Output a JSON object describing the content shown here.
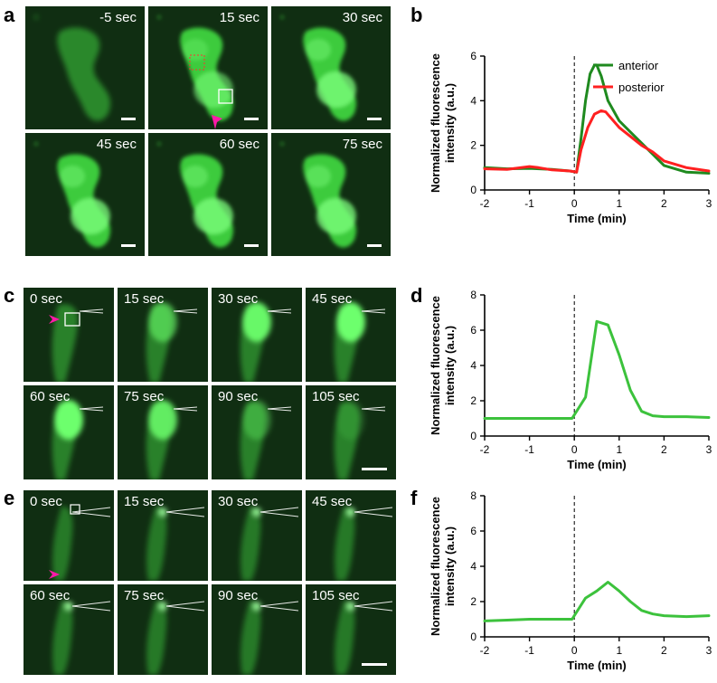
{
  "panels": {
    "a": {
      "label": "a",
      "frames": [
        "-5 sec",
        "15 sec",
        "30 sec",
        "45 sec",
        "60 sec",
        "75 sec"
      ]
    },
    "b": {
      "label": "b"
    },
    "c": {
      "label": "c",
      "frames": [
        "0 sec",
        "15 sec",
        "30 sec",
        "45 sec",
        "60 sec",
        "75 sec",
        "90 sec",
        "105 sec"
      ]
    },
    "d": {
      "label": "d"
    },
    "e": {
      "label": "e",
      "frames": [
        "0 sec",
        "15 sec",
        "30 sec",
        "45 sec",
        "60 sec",
        "75 sec",
        "90 sec",
        "105 sec"
      ]
    },
    "f": {
      "label": "f"
    }
  },
  "colors": {
    "cell_green": "#3fd43f",
    "background": "#0b1f0d",
    "arrowhead": "#ff1aa8",
    "anterior": "#1f8a1f",
    "posterior": "#ff2020",
    "single": "#3cc23c"
  },
  "chart_data": [
    {
      "id": "b",
      "type": "line",
      "xlabel": "Time (min)",
      "ylabel": "Normalized fluorescence intensity (a.u.)",
      "xlim": [
        -2,
        3
      ],
      "ylim": [
        0,
        6
      ],
      "xticks": [
        "-2",
        "-1",
        "0",
        "1",
        "2",
        "3"
      ],
      "yticks": [
        "0",
        "2",
        "4",
        "6"
      ],
      "legend": "top-right",
      "vline_x": 0,
      "series": [
        {
          "name": "anterior",
          "color": "#1f8a1f",
          "x": [
            -2,
            -1.5,
            -1,
            -0.5,
            -0.1,
            0.05,
            0.15,
            0.25,
            0.35,
            0.45,
            0.5,
            0.6,
            0.75,
            1.0,
            1.25,
            1.5,
            1.75,
            2.0,
            2.5,
            3.0
          ],
          "y": [
            1.0,
            0.95,
            0.97,
            0.92,
            0.85,
            0.8,
            2.3,
            4.0,
            5.2,
            5.6,
            5.6,
            5.1,
            4.0,
            3.1,
            2.6,
            2.1,
            1.6,
            1.1,
            0.8,
            0.75
          ]
        },
        {
          "name": "posterior",
          "color": "#ff2020",
          "x": [
            -2,
            -1.5,
            -1,
            -0.8,
            -0.5,
            -0.1,
            0.05,
            0.15,
            0.3,
            0.45,
            0.6,
            0.7,
            1.0,
            1.25,
            1.5,
            1.75,
            2.0,
            2.5,
            3.0
          ],
          "y": [
            0.95,
            0.92,
            1.05,
            1.0,
            0.9,
            0.85,
            0.8,
            1.8,
            2.8,
            3.4,
            3.55,
            3.5,
            2.8,
            2.4,
            2.0,
            1.7,
            1.3,
            1.0,
            0.85
          ]
        }
      ]
    },
    {
      "id": "d",
      "type": "line",
      "xlabel": "Time (min)",
      "ylabel": "Normalized fluorescence intensity (a.u.)",
      "xlim": [
        -2,
        3
      ],
      "ylim": [
        0,
        8
      ],
      "xticks": [
        "-2",
        "-1",
        "0",
        "1",
        "2",
        "3"
      ],
      "yticks": [
        "0",
        "2",
        "4",
        "6",
        "8"
      ],
      "vline_x": 0,
      "series": [
        {
          "color": "#3cc23c",
          "x": [
            -2,
            -1.5,
            -1,
            -0.5,
            -0.05,
            0.25,
            0.5,
            0.75,
            1.0,
            1.25,
            1.5,
            1.75,
            2.0,
            2.5,
            3.0
          ],
          "y": [
            1.0,
            1.0,
            1.0,
            1.0,
            1.0,
            2.2,
            6.5,
            6.3,
            4.6,
            2.6,
            1.4,
            1.15,
            1.1,
            1.1,
            1.05
          ]
        }
      ]
    },
    {
      "id": "f",
      "type": "line",
      "xlabel": "Time (min)",
      "ylabel": "Normalized fluorescence intensity (a.u.)",
      "xlim": [
        -2,
        3
      ],
      "ylim": [
        0,
        8
      ],
      "xticks": [
        "-2",
        "-1",
        "0",
        "1",
        "2",
        "3"
      ],
      "yticks": [
        "0",
        "2",
        "4",
        "6",
        "8"
      ],
      "vline_x": 0,
      "series": [
        {
          "color": "#3cc23c",
          "x": [
            -2,
            -1.5,
            -1,
            -0.5,
            -0.05,
            0.25,
            0.5,
            0.75,
            1.0,
            1.25,
            1.5,
            1.75,
            2.0,
            2.5,
            3.0
          ],
          "y": [
            0.9,
            0.95,
            1.0,
            1.0,
            1.0,
            2.2,
            2.6,
            3.1,
            2.6,
            2.0,
            1.5,
            1.3,
            1.2,
            1.15,
            1.2
          ]
        }
      ]
    }
  ]
}
